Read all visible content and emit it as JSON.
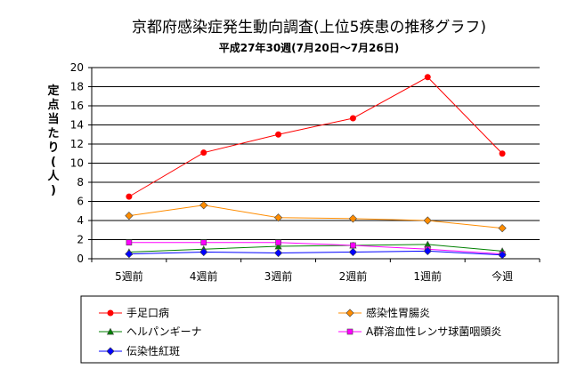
{
  "chart_data": {
    "type": "line",
    "title": "京都府感染症発生動向調査(上位5疾患の推移グラフ)",
    "subtitle": "平成27年30週(7月20日～7月26日)",
    "ylabel": "定点当たり(人)",
    "xlabel": "",
    "categories": [
      "5週前",
      "4週前",
      "3週前",
      "2週前",
      "1週前",
      "今週"
    ],
    "ylim": [
      0,
      20
    ],
    "yticks": [
      0,
      2,
      4,
      6,
      8,
      10,
      12,
      14,
      16,
      18,
      20
    ],
    "grid": true,
    "legend_position": "bottom",
    "series": [
      {
        "name": "手足口病",
        "color": "#ff0000",
        "marker": "circle",
        "values": [
          6.5,
          11.1,
          13.0,
          14.7,
          19.0,
          11.0
        ]
      },
      {
        "name": "感染性胃腸炎",
        "color": "#ff8c00",
        "marker": "diamond",
        "values": [
          4.5,
          5.6,
          4.3,
          4.2,
          4.0,
          3.2
        ]
      },
      {
        "name": "ヘルパンギーナ",
        "color": "#008000",
        "marker": "triangle",
        "values": [
          0.7,
          1.0,
          1.3,
          1.4,
          1.5,
          0.8
        ]
      },
      {
        "name": "A群溶血性レンサ球菌咽頭炎",
        "color": "#ff00ff",
        "marker": "square",
        "values": [
          1.7,
          1.7,
          1.7,
          1.4,
          1.0,
          0.5
        ]
      },
      {
        "name": "伝染性紅斑",
        "color": "#0000ff",
        "marker": "diamond",
        "values": [
          0.5,
          0.7,
          0.6,
          0.7,
          0.8,
          0.4
        ]
      }
    ]
  }
}
